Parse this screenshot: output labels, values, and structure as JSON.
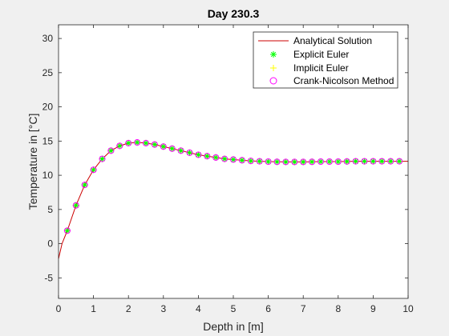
{
  "chart_data": {
    "type": "line",
    "title": "Day 230.3",
    "xlabel": "Depth in [m]",
    "ylabel": "Temperature in [°C]",
    "xlim": [
      0,
      10
    ],
    "ylim": [
      -8,
      32
    ],
    "xticks": [
      0,
      1,
      2,
      3,
      4,
      5,
      6,
      7,
      8,
      9,
      10
    ],
    "yticks": [
      -5,
      0,
      5,
      10,
      15,
      20,
      25,
      30
    ],
    "grid": false,
    "legend_position": "top-right",
    "series": [
      {
        "name": "Analytical Solution",
        "style": "line",
        "color": "#cc0000",
        "x": [
          0,
          0.1,
          0.25,
          0.5,
          0.75,
          1.0,
          1.25,
          1.5,
          1.75,
          2.0,
          2.25,
          2.5,
          2.75,
          3.0,
          3.25,
          3.5,
          3.75,
          4.0,
          4.25,
          4.5,
          4.75,
          5.0,
          5.5,
          6.0,
          6.5,
          7.0,
          7.5,
          8.0,
          8.5,
          9.0,
          9.5,
          10.0
        ],
        "y": [
          -2.2,
          0.0,
          1.9,
          5.6,
          8.6,
          10.8,
          12.4,
          13.6,
          14.3,
          14.7,
          14.8,
          14.7,
          14.5,
          14.2,
          13.9,
          13.6,
          13.3,
          13.0,
          12.8,
          12.6,
          12.4,
          12.3,
          12.1,
          12.0,
          11.95,
          11.95,
          12.0,
          12.0,
          12.05,
          12.05,
          12.05,
          12.05
        ]
      },
      {
        "name": "Explicit Euler",
        "style": "marker",
        "marker": "asterisk",
        "color": "#00ff00",
        "x": [
          0.25,
          0.5,
          0.75,
          1.0,
          1.25,
          1.5,
          1.75,
          2.0,
          2.25,
          2.5,
          2.75,
          3.0,
          3.25,
          3.5,
          3.75,
          4.0,
          4.25,
          4.5,
          4.75,
          5.0,
          5.25,
          5.5,
          5.75,
          6.0,
          6.25,
          6.5,
          6.75,
          7.0,
          7.25,
          7.5,
          7.75,
          8.0,
          8.25,
          8.5,
          8.75,
          9.0,
          9.25,
          9.5,
          9.75
        ],
        "y": [
          1.9,
          5.6,
          8.6,
          10.8,
          12.4,
          13.6,
          14.3,
          14.7,
          14.8,
          14.7,
          14.5,
          14.2,
          13.9,
          13.6,
          13.3,
          13.0,
          12.8,
          12.6,
          12.4,
          12.3,
          12.2,
          12.1,
          12.05,
          12.0,
          11.97,
          11.95,
          11.95,
          11.95,
          11.97,
          12.0,
          12.0,
          12.0,
          12.02,
          12.05,
          12.05,
          12.05,
          12.05,
          12.05,
          12.05
        ]
      },
      {
        "name": "Implicit Euler",
        "style": "marker",
        "marker": "plus",
        "color": "#ffff00",
        "x": [
          0.25,
          0.5,
          0.75,
          1.0,
          1.25,
          1.5,
          1.75,
          2.0,
          2.25,
          2.5,
          2.75,
          3.0,
          3.25,
          3.5,
          3.75,
          4.0,
          4.25,
          4.5,
          4.75,
          5.0,
          5.25,
          5.5,
          5.75,
          6.0,
          6.25,
          6.5,
          6.75,
          7.0,
          7.25,
          7.5,
          7.75,
          8.0,
          8.25,
          8.5,
          8.75,
          9.0,
          9.25,
          9.5,
          9.75
        ],
        "y": [
          1.9,
          5.6,
          8.6,
          10.8,
          12.4,
          13.6,
          14.3,
          14.7,
          14.8,
          14.7,
          14.5,
          14.2,
          13.9,
          13.6,
          13.3,
          13.0,
          12.8,
          12.6,
          12.4,
          12.3,
          12.2,
          12.1,
          12.05,
          12.0,
          11.97,
          11.95,
          11.95,
          11.95,
          11.97,
          12.0,
          12.0,
          12.0,
          12.02,
          12.05,
          12.05,
          12.05,
          12.05,
          12.05,
          12.05
        ]
      },
      {
        "name": "Crank-Nicolson Method",
        "style": "marker",
        "marker": "circle",
        "color": "#ff00ff",
        "x": [
          0.25,
          0.5,
          0.75,
          1.0,
          1.25,
          1.5,
          1.75,
          2.0,
          2.25,
          2.5,
          2.75,
          3.0,
          3.25,
          3.5,
          3.75,
          4.0,
          4.25,
          4.5,
          4.75,
          5.0,
          5.25,
          5.5,
          5.75,
          6.0,
          6.25,
          6.5,
          6.75,
          7.0,
          7.25,
          7.5,
          7.75,
          8.0,
          8.25,
          8.5,
          8.75,
          9.0,
          9.25,
          9.5,
          9.75
        ],
        "y": [
          1.9,
          5.6,
          8.6,
          10.8,
          12.4,
          13.6,
          14.3,
          14.7,
          14.8,
          14.7,
          14.5,
          14.2,
          13.9,
          13.6,
          13.3,
          13.0,
          12.8,
          12.6,
          12.4,
          12.3,
          12.2,
          12.1,
          12.05,
          12.0,
          11.97,
          11.95,
          11.95,
          11.95,
          11.97,
          12.0,
          12.0,
          12.0,
          12.02,
          12.05,
          12.05,
          12.05,
          12.05,
          12.05,
          12.05
        ]
      }
    ]
  }
}
